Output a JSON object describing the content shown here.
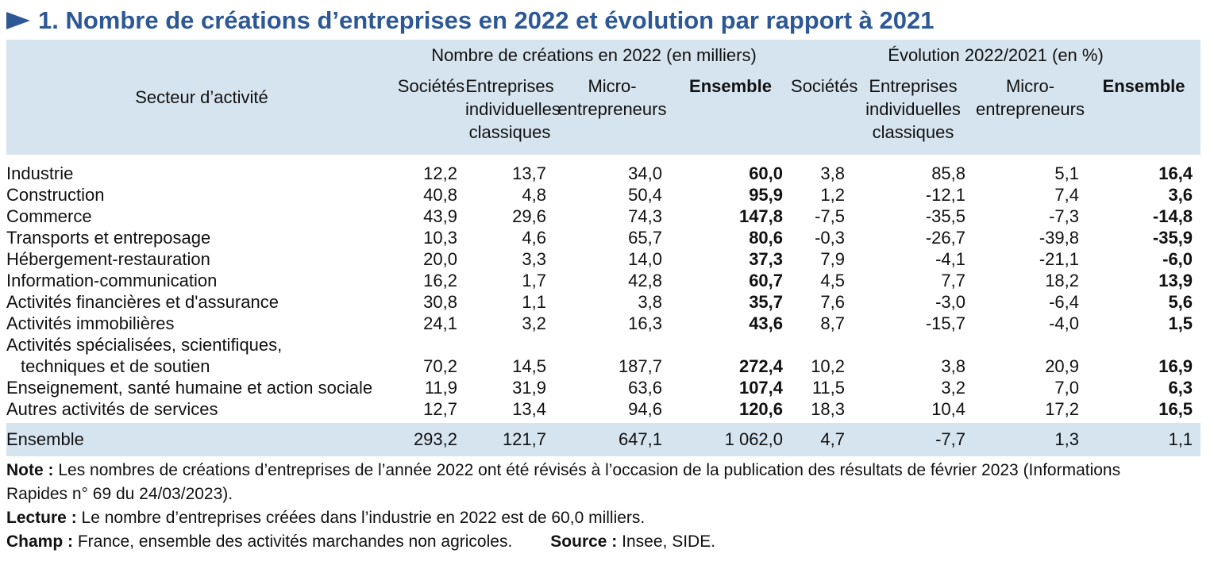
{
  "title": "1. Nombre de créations d’entreprises en 2022 et évolution par rapport à 2021",
  "header": {
    "sector_label": "Secteur d’activité",
    "group1_label": "Nombre de créations en 2022 (en milliers)",
    "group2_label": "Évolution 2022/2021 (en %)",
    "columns": {
      "societes": "Sociétés",
      "ei_line1": "Entreprises",
      "ei_line2": "individuelles",
      "ei_line3": "classiques",
      "micro_line1": "Micro-",
      "micro_line2": "entrepreneurs",
      "ensemble": "Ensemble"
    }
  },
  "rows": [
    {
      "sector": "Industrie",
      "v": [
        "12,2",
        "13,7",
        "34,0",
        "60,0",
        "3,8",
        "85,8",
        "5,1",
        "16,4"
      ]
    },
    {
      "sector": "Construction",
      "v": [
        "40,8",
        "4,8",
        "50,4",
        "95,9",
        "1,2",
        "-12,1",
        "7,4",
        "3,6"
      ]
    },
    {
      "sector": "Commerce",
      "v": [
        "43,9",
        "29,6",
        "74,3",
        "147,8",
        "-7,5",
        "-35,5",
        "-7,3",
        "-14,8"
      ]
    },
    {
      "sector": "Transports et entreposage",
      "v": [
        "10,3",
        "4,6",
        "65,7",
        "80,6",
        "-0,3",
        "-26,7",
        "-39,8",
        "-35,9"
      ]
    },
    {
      "sector": "Hébergement-restauration",
      "v": [
        "20,0",
        "3,3",
        "14,0",
        "37,3",
        "7,9",
        "-4,1",
        "-21,1",
        "-6,0"
      ]
    },
    {
      "sector": "Information-communication",
      "v": [
        "16,2",
        "1,7",
        "42,8",
        "60,7",
        "4,5",
        "7,7",
        "18,2",
        "13,9"
      ]
    },
    {
      "sector": "Activités financières et d'assurance",
      "v": [
        "30,8",
        "1,1",
        "3,8",
        "35,7",
        "7,6",
        "-3,0",
        "-6,4",
        "5,6"
      ]
    },
    {
      "sector": "Activités immobilières",
      "v": [
        "24,1",
        "3,2",
        "16,3",
        "43,6",
        "8,7",
        "-15,7",
        "-4,0",
        "1,5"
      ]
    },
    {
      "sector_line1": "Activités spécialisées, scientifiques,",
      "sector_line2": "techniques et de soutien",
      "v": [
        "70,2",
        "14,5",
        "187,7",
        "272,4",
        "10,2",
        "3,8",
        "20,9",
        "16,9"
      ]
    },
    {
      "sector": "Enseignement, santé humaine et action sociale",
      "v": [
        "11,9",
        "31,9",
        "63,6",
        "107,4",
        "11,5",
        "3,2",
        "7,0",
        "6,3"
      ]
    },
    {
      "sector": "Autres activités de services",
      "v": [
        "12,7",
        "13,4",
        "94,6",
        "120,6",
        "18,3",
        "10,4",
        "17,2",
        "16,5"
      ]
    }
  ],
  "total": {
    "sector": "Ensemble",
    "v": [
      "293,2",
      "121,7",
      "647,1",
      "1 062,0",
      "4,7",
      "-7,7",
      "1,3",
      "1,1"
    ]
  },
  "notes": {
    "note_label": "Note :",
    "note_text": " Les nombres de créations d’entreprises de l’année 2022 ont été révisés à l’occasion de la publication des résultats de février 2023 (Informations Rapides n° 69 du 24/03/2023).",
    "lecture_label": "Lecture :",
    "lecture_text": " Le nombre d’entreprises créées dans l’industrie en 2022 est de 60,0 milliers.",
    "champ_label": "Champ :",
    "champ_text": " France, ensemble des activités marchandes non agricoles.",
    "source_label": "Source :",
    "source_text": " Insee, SIDE."
  },
  "colors": {
    "title": "#2d5896",
    "header_bg": "#d6e4ef"
  }
}
